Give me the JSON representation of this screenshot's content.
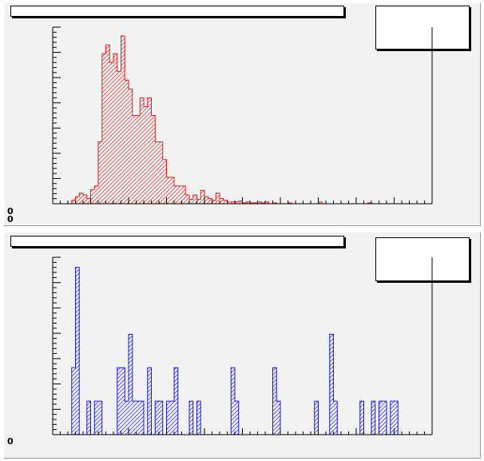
{
  "chart_data": [
    {
      "type": "bar",
      "style": "step-histogram",
      "color": "#e0201c",
      "fill": "hatched",
      "x": {
        "min": 0,
        "max": 100,
        "bins": 100
      },
      "ylim": [
        0,
        0.2
      ],
      "bin_values": [
        0,
        0,
        0,
        0,
        0,
        0.004,
        0.008,
        0.012,
        0.01,
        0.006,
        0.016,
        0.02,
        0.07,
        0.17,
        0.18,
        0.16,
        0.17,
        0.15,
        0.19,
        0.14,
        0.13,
        0.1,
        0.1,
        0.12,
        0.11,
        0.12,
        0.1,
        0.07,
        0.07,
        0.05,
        0.03,
        0.03,
        0.02,
        0.02,
        0.02,
        0.01,
        0.005,
        0.01,
        0.005,
        0.015,
        0.008,
        0.006,
        0.004,
        0.012,
        0.006,
        0.004,
        0.002,
        0.002,
        0.002,
        0.003,
        0.001,
        0.002,
        0.001,
        0.001,
        0.002,
        0.001,
        0.002,
        0,
        0.001,
        0,
        0,
        0,
        0.001,
        0,
        0,
        0,
        0,
        0,
        0,
        0,
        0.002,
        0,
        0,
        0,
        0,
        0,
        0,
        0,
        0,
        0,
        0,
        0,
        0,
        0.001,
        0,
        0,
        0,
        0,
        0,
        0,
        0,
        0,
        0,
        0,
        0,
        0,
        0,
        0,
        0,
        0
      ],
      "y_tick_label": "0",
      "title": "",
      "xlabel": "",
      "ylabel": ""
    },
    {
      "type": "bar",
      "style": "step-histogram",
      "color": "#1a1ad6",
      "fill": "hatched",
      "x": {
        "min": 0,
        "max": 100,
        "bins": 100
      },
      "ylim": [
        0,
        5.3
      ],
      "bin_values": [
        0,
        0,
        0,
        0,
        0,
        2,
        5,
        0,
        0,
        1,
        0,
        1,
        1,
        0,
        0,
        0,
        0,
        2,
        2,
        1,
        3,
        1,
        1,
        1,
        0,
        2,
        0,
        1,
        1,
        0,
        1,
        1,
        2,
        0,
        0,
        0,
        1,
        0,
        1,
        0,
        0,
        0,
        0,
        0,
        0,
        0,
        0,
        2,
        1,
        0,
        0,
        0,
        0,
        0,
        0,
        0,
        0,
        0,
        2,
        1,
        0,
        0,
        0,
        0,
        0,
        0,
        0,
        0,
        0,
        1,
        0,
        0,
        0,
        3,
        1,
        0,
        0,
        0,
        0,
        0,
        0,
        1,
        0,
        0,
        1,
        0,
        1,
        1,
        0,
        1,
        1,
        0,
        0,
        0,
        0,
        0,
        0,
        0,
        0,
        0
      ],
      "y_tick_label": "0",
      "title": "",
      "xlabel": "",
      "ylabel": ""
    }
  ]
}
